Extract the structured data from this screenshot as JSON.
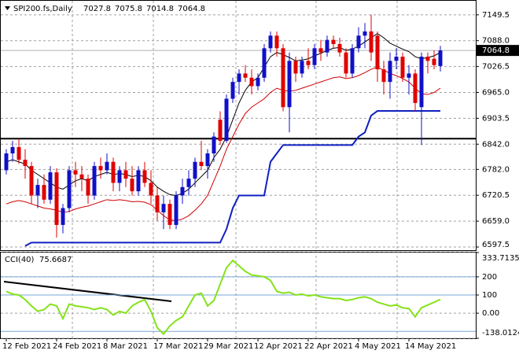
{
  "chart_data": [
    {
      "type": "candlestick",
      "title": "SPI200.fs,Daily",
      "categories": [
        "12 Feb 2021",
        null,
        null,
        null,
        null,
        null,
        null,
        null,
        "24 Feb 2021",
        null,
        null,
        null,
        null,
        null,
        null,
        null,
        "8 Mar 2021",
        null,
        null,
        null,
        null,
        null,
        null,
        null,
        "17 Mar 2021",
        null,
        null,
        null,
        null,
        null,
        null,
        null,
        "29 Mar 2021",
        null,
        null,
        null,
        null,
        null,
        null,
        null,
        "12 Apr 2021",
        null,
        null,
        null,
        null,
        null,
        null,
        null,
        "22 Apr 2021",
        null,
        null,
        null,
        null,
        null,
        null,
        null,
        "4 May 2021",
        null,
        null,
        null,
        null,
        null,
        null,
        null,
        "14 May 2021",
        null,
        null,
        null,
        null,
        null
      ],
      "open": [
        6780,
        6820,
        6835,
        6805,
        6790,
        6720,
        6745,
        6710,
        6775,
        6650,
        6690,
        6780,
        6770,
        6760,
        6720,
        6790,
        6780,
        6800,
        6750,
        6780,
        6760,
        6730,
        6780,
        6750,
        6720,
        6680,
        6700,
        6650,
        6720,
        6740,
        6760,
        6800,
        6790,
        6820,
        6900,
        6850,
        6950,
        6990,
        7010,
        7000,
        6980,
        7000,
        7070,
        7100,
        7070,
        6930,
        7040,
        7010,
        7040,
        7030,
        7070,
        7060,
        7090,
        7080,
        7060,
        7010,
        7070,
        7100,
        7110,
        7100,
        7020,
        6990,
        7040,
        7050,
        7000,
        7010,
        6930,
        7050,
        7045,
        7027.8
      ],
      "high": [
        6830,
        6850,
        6855,
        6830,
        6800,
        6760,
        6770,
        6790,
        6785,
        6700,
        6790,
        6800,
        6790,
        6770,
        6800,
        6810,
        6820,
        6810,
        6790,
        6800,
        6790,
        6790,
        6800,
        6780,
        6740,
        6720,
        6710,
        6730,
        6760,
        6780,
        6810,
        6850,
        6830,
        6870,
        6920,
        6960,
        7000,
        7020,
        7030,
        7020,
        7010,
        7080,
        7110,
        7110,
        7080,
        7060,
        7050,
        7050,
        7070,
        7080,
        7090,
        7100,
        7100,
        7095,
        7070,
        7080,
        7120,
        7130,
        7150,
        7110,
        7040,
        7060,
        7070,
        7060,
        7030,
        7020,
        7060,
        7060,
        7065,
        7075.8
      ],
      "low": [
        6770,
        6800,
        6795,
        6760,
        6700,
        6690,
        6700,
        6700,
        6620,
        6630,
        6680,
        6740,
        6730,
        6700,
        6710,
        6760,
        6770,
        6730,
        6730,
        6740,
        6720,
        6720,
        6740,
        6700,
        6660,
        6640,
        6640,
        6640,
        6700,
        6720,
        6740,
        6780,
        6760,
        6800,
        6840,
        6845,
        6940,
        6960,
        6990,
        6960,
        6970,
        6990,
        7060,
        7050,
        6920,
        6870,
        6990,
        7000,
        7020,
        7020,
        7040,
        7050,
        7070,
        7050,
        7000,
        7000,
        7060,
        7070,
        7040,
        6990,
        6960,
        6950,
        7020,
        6990,
        6960,
        6920,
        6840,
        7010,
        7020,
        7014.8
      ],
      "close": [
        6820,
        6835,
        6805,
        6790,
        6720,
        6745,
        6710,
        6775,
        6650,
        6690,
        6780,
        6770,
        6760,
        6720,
        6790,
        6780,
        6800,
        6750,
        6780,
        6760,
        6730,
        6780,
        6750,
        6720,
        6680,
        6700,
        6650,
        6720,
        6740,
        6760,
        6800,
        6790,
        6820,
        6860,
        6850,
        6950,
        6990,
        7010,
        7000,
        6980,
        7000,
        7070,
        7100,
        7070,
        6930,
        7040,
        7010,
        7040,
        7030,
        7070,
        7060,
        7090,
        7080,
        7060,
        7010,
        7070,
        7100,
        7110,
        7060,
        7020,
        6990,
        7040,
        7050,
        7000,
        7010,
        6940,
        7050,
        7040,
        7030,
        7064.8
      ],
      "up_color": "#1010c8",
      "down_color": "#e00000",
      "lines": [
        {
          "color": "#000000",
          "values": [
            6800,
            6805,
            6800,
            6795,
            6780,
            6770,
            6760,
            6750,
            6740,
            6735,
            6745,
            6755,
            6760,
            6755,
            6765,
            6770,
            6775,
            6770,
            6772,
            6770,
            6765,
            6768,
            6765,
            6755,
            6740,
            6730,
            6722,
            6720,
            6725,
            6735,
            6750,
            6765,
            6780,
            6810,
            6830,
            6860,
            6900,
            6940,
            6970,
            6990,
            7000,
            7025,
            7050,
            7060,
            7055,
            7048,
            7040,
            7042,
            7045,
            7052,
            7058,
            7065,
            7070,
            7072,
            7065,
            7068,
            7075,
            7085,
            7095,
            7105,
            7095,
            7082,
            7075,
            7068,
            7062,
            7050,
            7045,
            7048,
            7052,
            7060
          ]
        },
        {
          "color": "#d00000",
          "values": [
            6700,
            6705,
            6708,
            6705,
            6700,
            6695,
            6690,
            6688,
            6685,
            6680,
            6682,
            6688,
            6692,
            6695,
            6700,
            6705,
            6710,
            6708,
            6710,
            6708,
            6705,
            6706,
            6704,
            6698,
            6685,
            6672,
            6662,
            6660,
            6664,
            6672,
            6685,
            6700,
            6720,
            6755,
            6790,
            6830,
            6860,
            6890,
            6915,
            6930,
            6940,
            6950,
            6965,
            6975,
            6970,
            6968,
            6970,
            6975,
            6980,
            6985,
            6990,
            6995,
            7000,
            7002,
            6998,
            7000,
            7005,
            7012,
            7020,
            7025,
            7018,
            7010,
            7005,
            6998,
            6990,
            6975,
            6962,
            6960,
            6965,
            6975
          ]
        },
        {
          "color": "#1020c0",
          "values": [
            null,
            null,
            null,
            6600,
            6608,
            6608,
            6608,
            6608,
            6608,
            6608,
            6608,
            6608,
            6608,
            6608,
            6608,
            6608,
            6608,
            6608,
            6608,
            6608,
            6608,
            6608,
            6608,
            6608,
            6608,
            6608,
            6608,
            6608,
            6608,
            6608,
            6608,
            6608,
            6608,
            6608,
            6608,
            6640,
            6690,
            6720,
            6720,
            6720,
            6720,
            6720,
            6800,
            6820,
            6840,
            6840,
            6840,
            6840,
            6840,
            6840,
            6840,
            6840,
            6840,
            6840,
            6840,
            6840,
            6860,
            6870,
            6910,
            6921,
            6921,
            6921,
            6921,
            6921,
            6921,
            6921,
            6921,
            6921,
            6921,
            6921
          ]
        }
      ],
      "levels": [
        {
          "value": 6855,
          "color": "#000000"
        }
      ],
      "ylim": [
        6590,
        7181
      ],
      "yticks": [
        6597.5,
        {
          "value": 6659,
          "label": "6659.0"
        },
        6720.5,
        {
          "value": 6782,
          "label": "6782.0"
        },
        {
          "value": 6842,
          "label": "6842.0"
        },
        6903.5,
        {
          "value": 6965,
          "label": "6965.0"
        },
        7026.5,
        {
          "value": 7088,
          "label": "7088.0"
        },
        7149.5
      ],
      "grid": true
    },
    {
      "type": "line",
      "title": "CCI(40)",
      "color": "#84e21a",
      "values": [
        120,
        105,
        100,
        75,
        40,
        10,
        20,
        50,
        40,
        -30,
        50,
        40,
        35,
        30,
        20,
        30,
        20,
        -10,
        10,
        0,
        40,
        60,
        75,
        10,
        -80,
        -115,
        -70,
        -40,
        -20,
        40,
        100,
        110,
        40,
        70,
        160,
        250,
        290,
        260,
        230,
        210,
        205,
        200,
        180,
        120,
        110,
        115,
        100,
        105,
        95,
        100,
        90,
        85,
        80,
        80,
        70,
        75,
        85,
        90,
        80,
        60,
        50,
        40,
        45,
        30,
        25,
        -20,
        30,
        45,
        60,
        75.6687
      ],
      "levels": [
        200,
        100,
        -100
      ],
      "level_color": "#7aa6d6",
      "ylim": [
        -138.0124,
        333.7135
      ],
      "yticks": [
        333.7135,
        200,
        100,
        {
          "value": 0,
          "label": "0.00"
        },
        -138.0124
      ],
      "grid": true
    }
  ]
}
